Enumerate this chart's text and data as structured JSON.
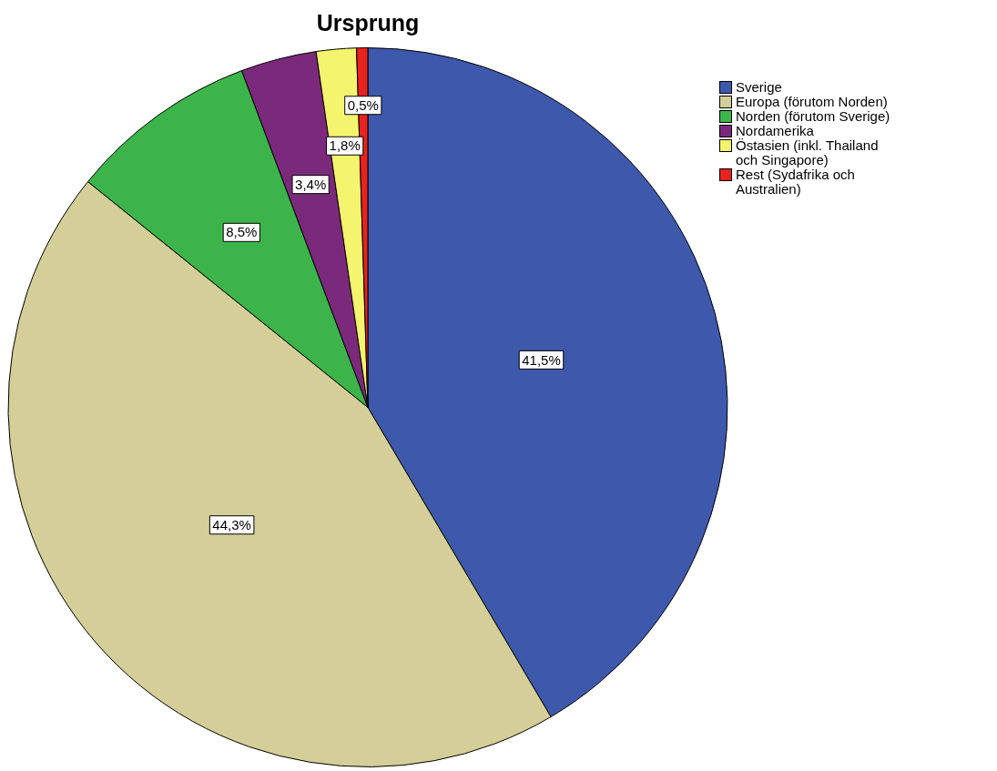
{
  "chart_data": {
    "type": "pie",
    "title": "Ursprung",
    "categories": [
      "Sverige",
      "Europa (förutom Norden)",
      "Norden (förutom Sverige)",
      "Nordamerika",
      "Östasien (inkl. Thailand och Singapore)",
      "Rest (Sydafrika och Australien)"
    ],
    "values": [
      41.5,
      44.3,
      8.5,
      3.4,
      1.8,
      0.5
    ],
    "colors": [
      "#3e58ac",
      "#d4ce98",
      "#3cb44a",
      "#7b2a7b",
      "#f5f46e",
      "#e8221e"
    ],
    "value_labels": [
      "41,5%",
      "44,3%",
      "8,5%",
      "3,4%",
      "1,8%",
      "0,5%"
    ],
    "legend": "top right"
  }
}
